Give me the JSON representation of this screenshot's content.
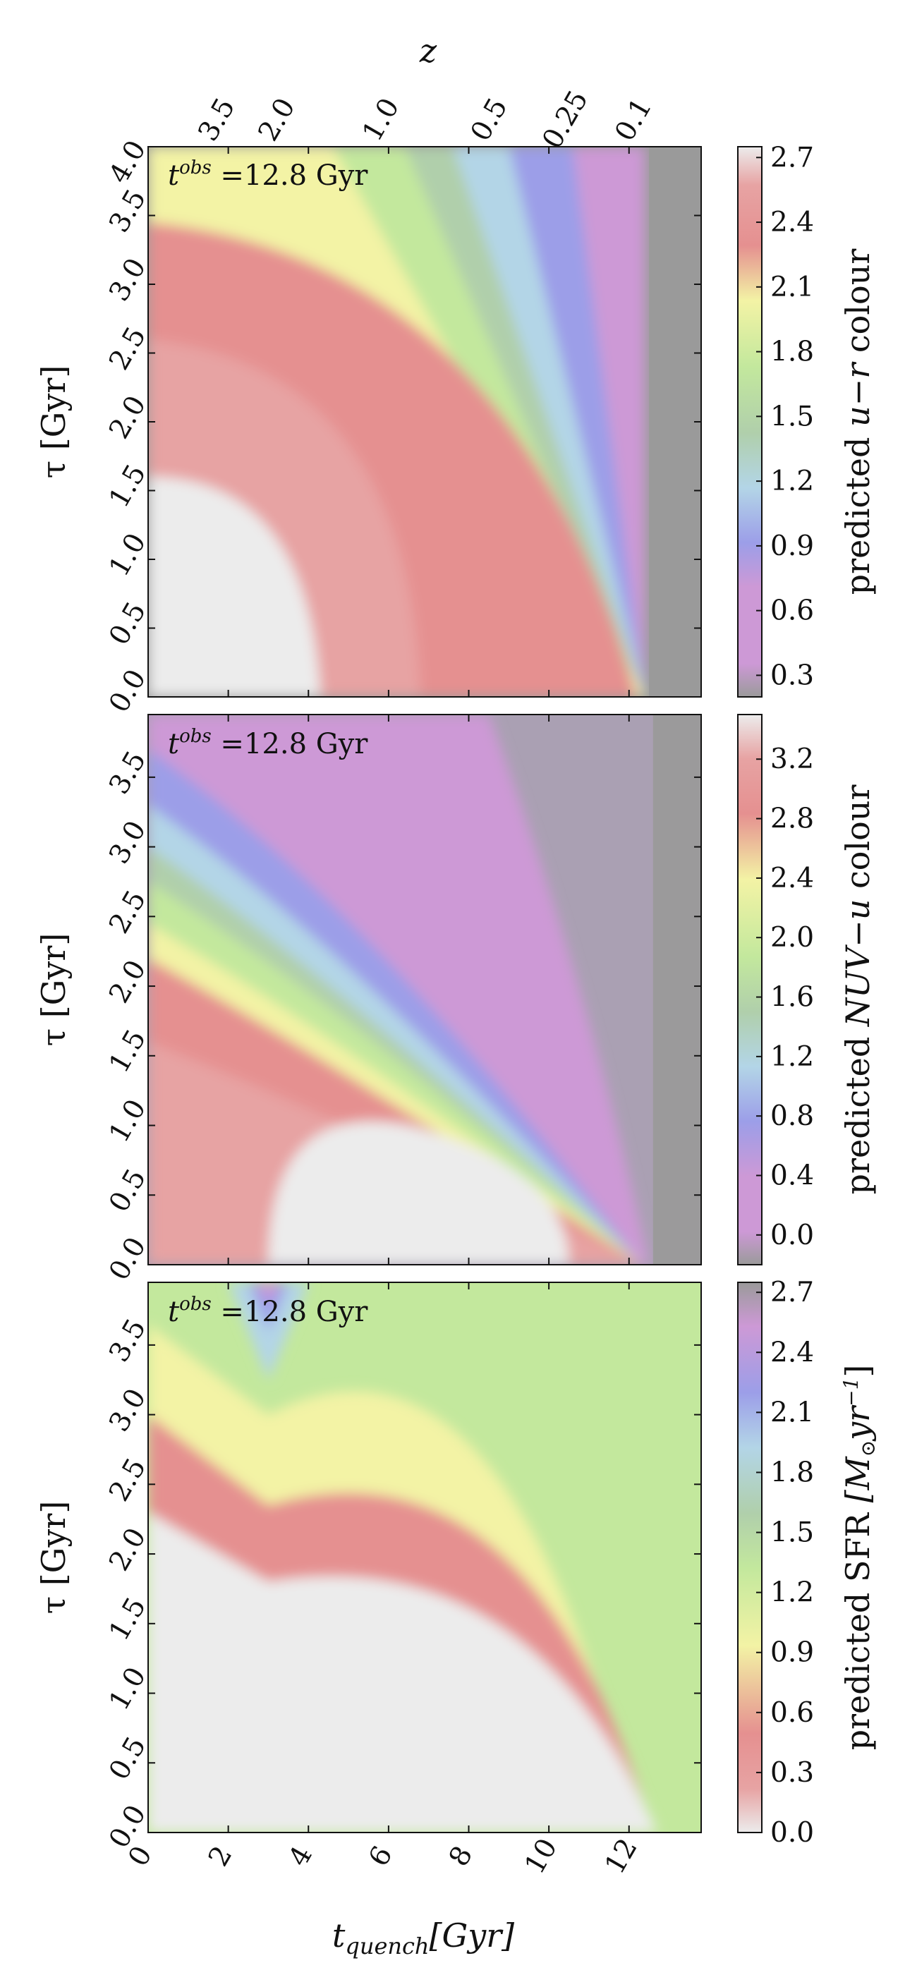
{
  "chart_data": [
    {
      "type": "heatmap",
      "annotation": "t^{obs} =12.8 Gyr",
      "annotation_parts": {
        "main": "t",
        "sup": "obs",
        "rest": " =12.8 Gyr"
      },
      "xlim": [
        0,
        13.8
      ],
      "ylim": [
        0,
        4.0
      ],
      "ylabel": "τ [Gyr]",
      "ytick_labels": [
        "0.0",
        "0.5",
        "1.0",
        "1.5",
        "2.0",
        "2.5",
        "3.0",
        "3.5",
        "4.0"
      ],
      "ytick_values": [
        0,
        0.5,
        1.0,
        1.5,
        2.0,
        2.5,
        3.0,
        3.5,
        4.0
      ],
      "top_axis_label": "z",
      "top_tick_labels": [
        "3.5",
        "2.0",
        "1.0",
        "0.5",
        "0.25",
        "0.1"
      ],
      "top_tick_positions_gyr": [
        1.8,
        3.3,
        5.9,
        8.6,
        10.5,
        12.2
      ],
      "colorbar": {
        "label": "predicted u−r colour",
        "label_parts": {
          "a": "predicted ",
          "b": "u",
          "c": "−",
          "d": "r",
          "e": " colour"
        },
        "tick_labels": [
          "0.3",
          "0.6",
          "0.9",
          "1.2",
          "1.5",
          "1.8",
          "2.1",
          "2.4",
          "2.7"
        ],
        "tick_values": [
          0.3,
          0.6,
          0.9,
          1.2,
          1.5,
          1.8,
          2.1,
          2.4,
          2.7
        ],
        "range": [
          0.2,
          2.75
        ],
        "orientation": "low-bottom"
      }
    },
    {
      "type": "heatmap",
      "annotation": "t^{obs} =12.8 Gyr",
      "annotation_parts": {
        "main": "t",
        "sup": "obs",
        "rest": " =12.8 Gyr"
      },
      "xlim": [
        0,
        13.8
      ],
      "ylim": [
        0,
        3.95
      ],
      "ylabel": "τ [Gyr]",
      "ytick_labels": [
        "0.0",
        "0.5",
        "1.0",
        "1.5",
        "2.0",
        "2.5",
        "3.0",
        "3.5"
      ],
      "ytick_values": [
        0,
        0.5,
        1.0,
        1.5,
        2.0,
        2.5,
        3.0,
        3.5
      ],
      "colorbar": {
        "label": "predicted NUV−u colour",
        "label_parts": {
          "a": "predicted ",
          "b": "NUV",
          "c": "−",
          "d": "u",
          "e": " colour"
        },
        "tick_labels": [
          "0.0",
          "0.4",
          "0.8",
          "1.2",
          "1.6",
          "2.0",
          "2.4",
          "2.8",
          "3.2"
        ],
        "tick_values": [
          0.0,
          0.4,
          0.8,
          1.2,
          1.6,
          2.0,
          2.4,
          2.8,
          3.2
        ],
        "range": [
          -0.2,
          3.5
        ],
        "orientation": "low-bottom"
      }
    },
    {
      "type": "heatmap",
      "annotation": "t^{obs} =12.8 Gyr",
      "annotation_parts": {
        "main": "t",
        "sup": "obs",
        "rest": " =12.8 Gyr"
      },
      "xlim": [
        0,
        13.8
      ],
      "ylim": [
        0,
        3.95
      ],
      "ylabel": "τ [Gyr]",
      "ytick_labels": [
        "0.0",
        "0.5",
        "1.0",
        "1.5",
        "2.0",
        "2.5",
        "3.0",
        "3.5"
      ],
      "ytick_values": [
        0,
        0.5,
        1.0,
        1.5,
        2.0,
        2.5,
        3.0,
        3.5
      ],
      "xlabel": "t_quench[Gyr]",
      "xlabel_parts": {
        "main": "t",
        "sub": "quench",
        "rest": "[Gyr]"
      },
      "xtick_labels": [
        "0",
        "2",
        "4",
        "6",
        "8",
        "10",
        "12"
      ],
      "xtick_values": [
        0,
        2,
        4,
        6,
        8,
        10,
        12
      ],
      "colorbar": {
        "label": "predicted SFR [M⊙yr⁻¹]",
        "label_parts": {
          "a": "predicted SFR ",
          "b": "[M",
          "c": "⊙",
          "d": "yr",
          "e": "−1",
          "f": "]"
        },
        "tick_labels": [
          "0.0",
          "0.3",
          "0.6",
          "0.9",
          "1.2",
          "1.5",
          "1.8",
          "2.1",
          "2.4",
          "2.7"
        ],
        "tick_values": [
          0.0,
          0.3,
          0.6,
          0.9,
          1.2,
          1.5,
          1.8,
          2.1,
          2.4,
          2.7
        ],
        "range": [
          0.0,
          2.75
        ],
        "orientation": "low-bottom-reversed-colormap"
      }
    }
  ],
  "colors": {
    "quenched_grey": "#9a9a9a",
    "light_grey": "#ececec",
    "pink_red": "#e7a3a3",
    "red": "#e59090",
    "yellow": "#f3f3a5",
    "green": "#c3e89d",
    "sage": "#b0cfab",
    "lightblue": "#b3d5e7",
    "blue": "#9c9ee8",
    "purple": "#cd99d6",
    "grey_purple": "#aaa0b3",
    "axis": "#111111"
  }
}
